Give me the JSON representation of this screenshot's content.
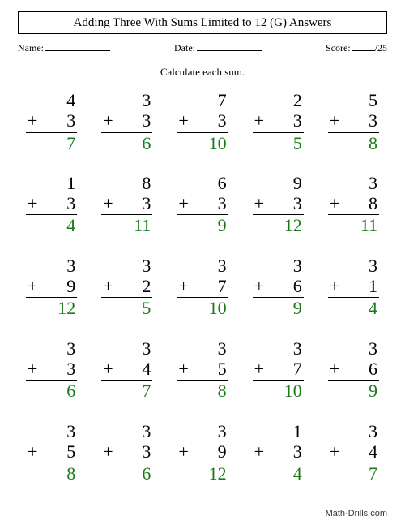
{
  "title": "Adding Three With Sums Limited to 12 (G) Answers",
  "labels": {
    "name": "Name:",
    "date": "Date:",
    "score": "Score:",
    "score_total": "/25"
  },
  "instruction": "Calculate each sum.",
  "footer": "Math-Drills.com",
  "answer_color": "#1a7a1a",
  "problems": [
    {
      "a": 4,
      "b": 3,
      "s": 7
    },
    {
      "a": 3,
      "b": 3,
      "s": 6
    },
    {
      "a": 7,
      "b": 3,
      "s": 10
    },
    {
      "a": 2,
      "b": 3,
      "s": 5
    },
    {
      "a": 5,
      "b": 3,
      "s": 8
    },
    {
      "a": 1,
      "b": 3,
      "s": 4
    },
    {
      "a": 8,
      "b": 3,
      "s": 11
    },
    {
      "a": 6,
      "b": 3,
      "s": 9
    },
    {
      "a": 9,
      "b": 3,
      "s": 12
    },
    {
      "a": 3,
      "b": 8,
      "s": 11
    },
    {
      "a": 3,
      "b": 9,
      "s": 12
    },
    {
      "a": 3,
      "b": 2,
      "s": 5
    },
    {
      "a": 3,
      "b": 7,
      "s": 10
    },
    {
      "a": 3,
      "b": 6,
      "s": 9
    },
    {
      "a": 3,
      "b": 1,
      "s": 4
    },
    {
      "a": 3,
      "b": 3,
      "s": 6
    },
    {
      "a": 3,
      "b": 4,
      "s": 7
    },
    {
      "a": 3,
      "b": 5,
      "s": 8
    },
    {
      "a": 3,
      "b": 7,
      "s": 10
    },
    {
      "a": 3,
      "b": 6,
      "s": 9
    },
    {
      "a": 3,
      "b": 5,
      "s": 8
    },
    {
      "a": 3,
      "b": 3,
      "s": 6
    },
    {
      "a": 3,
      "b": 9,
      "s": 12
    },
    {
      "a": 1,
      "b": 3,
      "s": 4
    },
    {
      "a": 3,
      "b": 4,
      "s": 7
    }
  ]
}
